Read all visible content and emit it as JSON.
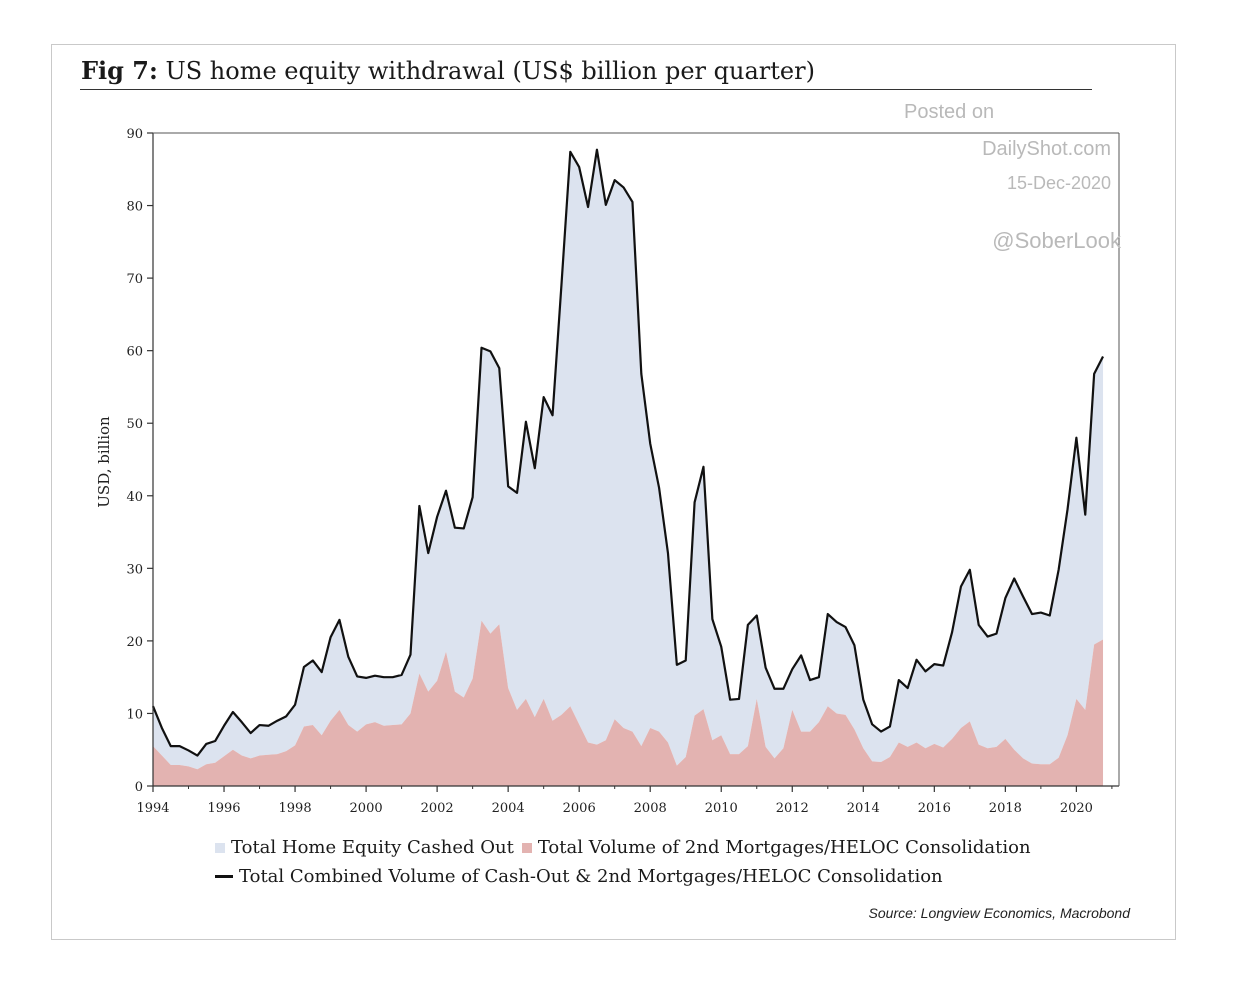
{
  "header": {
    "prefix": "Fig 7:",
    "title": "US home equity withdrawal (US$ billion per quarter)"
  },
  "watermark": {
    "line1": "Posted on",
    "line2": "DailyShot.com",
    "line3": "15-Dec-2020",
    "line4": "@SoberLook"
  },
  "source": "Source: Longview Economics, Macrobond",
  "colors": {
    "cashed_out_fill": "#dce3ef",
    "second_mortgage_fill": "#e3b3b1",
    "combined_line": "#111111"
  },
  "chart_data": {
    "type": "area",
    "title": "US home equity withdrawal (US$ billion per quarter)",
    "ylabel": "USD, billion",
    "xlabel": "",
    "xlim": [
      1994,
      2021.2
    ],
    "ylim": [
      0,
      90
    ],
    "xticks": [
      "1994",
      "1996",
      "1998",
      "2000",
      "2002",
      "2004",
      "2006",
      "2008",
      "2010",
      "2012",
      "2014",
      "2016",
      "2018",
      "2020"
    ],
    "yticks": [
      "0",
      "10",
      "20",
      "30",
      "40",
      "50",
      "60",
      "70",
      "80",
      "90"
    ],
    "grid": false,
    "legend_position": "bottom",
    "x": [
      1994.0,
      1994.25,
      1994.5,
      1994.75,
      1995.0,
      1995.25,
      1995.5,
      1995.75,
      1996.0,
      1996.25,
      1996.5,
      1996.75,
      1997.0,
      1997.25,
      1997.5,
      1997.75,
      1998.0,
      1998.25,
      1998.5,
      1998.75,
      1999.0,
      1999.25,
      1999.5,
      1999.75,
      2000.0,
      2000.25,
      2000.5,
      2000.75,
      2001.0,
      2001.25,
      2001.5,
      2001.75,
      2002.0,
      2002.25,
      2002.5,
      2002.75,
      2003.0,
      2003.25,
      2003.5,
      2003.75,
      2004.0,
      2004.25,
      2004.5,
      2004.75,
      2005.0,
      2005.25,
      2005.5,
      2005.75,
      2006.0,
      2006.25,
      2006.5,
      2006.75,
      2007.0,
      2007.25,
      2007.5,
      2007.75,
      2008.0,
      2008.25,
      2008.5,
      2008.75,
      2009.0,
      2009.25,
      2009.5,
      2009.75,
      2010.0,
      2010.25,
      2010.5,
      2010.75,
      2011.0,
      2011.25,
      2011.5,
      2011.75,
      2012.0,
      2012.25,
      2012.5,
      2012.75,
      2013.0,
      2013.25,
      2013.5,
      2013.75,
      2014.0,
      2014.25,
      2014.5,
      2014.75,
      2015.0,
      2015.25,
      2015.5,
      2015.75,
      2016.0,
      2016.25,
      2016.5,
      2016.75,
      2017.0,
      2017.25,
      2017.5,
      2017.75,
      2018.0,
      2018.25,
      2018.5,
      2018.75,
      2019.0,
      2019.25,
      2019.5,
      2019.75,
      2020.0,
      2020.25,
      2020.5,
      2020.75
    ],
    "series": [
      {
        "name": "Total Home Equity Cashed Out",
        "type": "area",
        "values": [
          5.5,
          3.8,
          2.6,
          2.6,
          2.2,
          1.9,
          2.8,
          3.0,
          4.2,
          5.2,
          4.6,
          3.5,
          4.2,
          4.0,
          4.6,
          4.8,
          5.6,
          8.2,
          8.9,
          8.7,
          11.5,
          12.4,
          9.4,
          7.6,
          6.4,
          6.4,
          6.7,
          6.6,
          6.8,
          8.1,
          23.1,
          19.1,
          22.6,
          22.2,
          22.6,
          23.3,
          25.0,
          37.6,
          38.9,
          35.3,
          27.8,
          29.9,
          38.2,
          34.3,
          41.6,
          42.1,
          59.2,
          76.4,
          76.8,
          73.8,
          82.0,
          73.8,
          74.3,
          74.5,
          73.0,
          51.3,
          39.2,
          33.6,
          26.1,
          13.9,
          13.3,
          29.4,
          33.4,
          16.7,
          12.2,
          7.5,
          7.6,
          16.7,
          11.5,
          10.9,
          9.6,
          8.2,
          5.6,
          10.5,
          7.1,
          6.2,
          12.7,
          12.6,
          12.1,
          11.6,
          6.7,
          5.1,
          4.2,
          4.2,
          8.6,
          8.1,
          11.4,
          10.6,
          11.0,
          11.3,
          14.7,
          19.5,
          20.9,
          16.5,
          15.4,
          15.6,
          19.4,
          23.6,
          22.3,
          20.6,
          20.9,
          20.5,
          25.9,
          31.1,
          36.0,
          26.9,
          37.3,
          39.0
        ]
      },
      {
        "name": "Total Volume of 2nd Mortgages/HELOC Consolidation",
        "type": "area",
        "values": [
          5.5,
          4.2,
          2.9,
          2.9,
          2.7,
          2.3,
          3.0,
          3.2,
          4.1,
          5.0,
          4.2,
          3.8,
          4.2,
          4.3,
          4.4,
          4.8,
          5.6,
          8.2,
          8.4,
          7.0,
          9.0,
          10.5,
          8.4,
          7.5,
          8.5,
          8.8,
          8.3,
          8.4,
          8.5,
          10.0,
          15.5,
          13.0,
          14.5,
          18.5,
          13.0,
          12.2,
          14.8,
          22.8,
          21.0,
          22.3,
          13.5,
          10.5,
          12.0,
          9.5,
          12.0,
          9.0,
          9.8,
          11.0,
          8.5,
          6.0,
          5.7,
          6.3,
          9.2,
          8.0,
          7.5,
          5.5,
          8.0,
          7.5,
          6.0,
          2.8,
          4.0,
          9.7,
          10.6,
          6.3,
          7.0,
          4.4,
          4.4,
          5.5,
          12.0,
          5.4,
          3.8,
          5.2,
          10.5,
          7.5,
          7.5,
          8.8,
          11.0,
          10.0,
          9.8,
          7.8,
          5.2,
          3.4,
          3.3,
          4.0,
          6.0,
          5.4,
          6.0,
          5.2,
          5.8,
          5.3,
          6.5,
          8.0,
          8.9,
          5.7,
          5.2,
          5.4,
          6.5,
          5.0,
          3.8,
          3.1,
          3.0,
          3.0,
          3.9,
          7.0,
          12.0,
          10.5,
          19.5,
          20.2
        ]
      },
      {
        "name": "Total Combined Volume of Cash-Out & 2nd Mortgages/HELOC Consolidation",
        "type": "line",
        "values": [
          11.0,
          8.0,
          5.5,
          5.5,
          4.9,
          4.2,
          5.8,
          6.2,
          8.3,
          10.2,
          8.8,
          7.3,
          8.4,
          8.3,
          9.0,
          9.6,
          11.2,
          16.4,
          17.3,
          15.7,
          20.5,
          22.9,
          17.8,
          15.1,
          14.9,
          15.2,
          15.0,
          15.0,
          15.3,
          18.1,
          38.6,
          32.1,
          37.1,
          40.7,
          35.6,
          35.5,
          39.8,
          60.4,
          59.9,
          57.6,
          41.3,
          40.4,
          50.2,
          43.8,
          53.6,
          51.1,
          69.0,
          87.4,
          85.3,
          79.8,
          87.7,
          80.1,
          83.5,
          82.5,
          80.5,
          56.8,
          47.2,
          41.1,
          32.1,
          16.7,
          17.3,
          39.1,
          44.0,
          23.0,
          19.2,
          11.9,
          12.0,
          22.2,
          23.5,
          16.3,
          13.4,
          13.4,
          16.1,
          18.0,
          14.6,
          15.0,
          23.7,
          22.6,
          21.9,
          19.4,
          11.9,
          8.5,
          7.5,
          8.2,
          14.6,
          13.5,
          17.4,
          15.8,
          16.8,
          16.6,
          21.2,
          27.5,
          29.8,
          22.2,
          20.6,
          21.0,
          25.9,
          28.6,
          26.1,
          23.7,
          23.9,
          23.5,
          29.8,
          38.1,
          48.0,
          37.4,
          56.8,
          59.2
        ]
      }
    ]
  }
}
